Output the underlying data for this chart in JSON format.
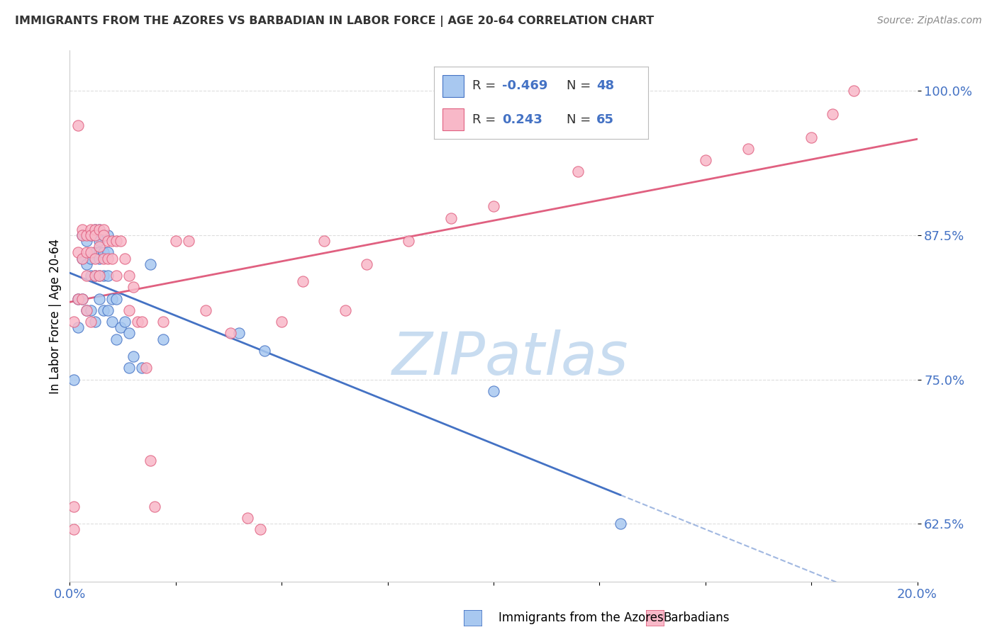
{
  "title": "IMMIGRANTS FROM THE AZORES VS BARBADIAN IN LABOR FORCE | AGE 20-64 CORRELATION CHART",
  "source": "Source: ZipAtlas.com",
  "ylabel": "In Labor Force | Age 20-64",
  "ytick_labels": [
    "62.5%",
    "75.0%",
    "87.5%",
    "100.0%"
  ],
  "ytick_values": [
    0.625,
    0.75,
    0.875,
    1.0
  ],
  "xlim": [
    0.0,
    0.2
  ],
  "ylim": [
    0.575,
    1.035
  ],
  "legend_r_azores": "-0.469",
  "legend_n_azores": "48",
  "legend_r_barbadian": "0.243",
  "legend_n_barbadian": "65",
  "color_azores_fill": "#A8C8F0",
  "color_barbadian_fill": "#F8B8C8",
  "color_azores_line": "#4472C4",
  "color_barbadian_line": "#E06080",
  "color_title": "#333333",
  "color_ytick": "#4472C4",
  "color_xtick": "#4472C4",
  "watermark_text": "ZIPatlas",
  "watermark_color": "#C8DCF0",
  "azores_x": [
    0.001,
    0.002,
    0.002,
    0.003,
    0.003,
    0.003,
    0.004,
    0.004,
    0.004,
    0.005,
    0.005,
    0.005,
    0.005,
    0.006,
    0.006,
    0.006,
    0.006,
    0.006,
    0.007,
    0.007,
    0.007,
    0.007,
    0.007,
    0.007,
    0.008,
    0.008,
    0.008,
    0.008,
    0.009,
    0.009,
    0.009,
    0.009,
    0.01,
    0.01,
    0.011,
    0.011,
    0.012,
    0.013,
    0.014,
    0.014,
    0.015,
    0.017,
    0.019,
    0.022,
    0.04,
    0.046,
    0.1,
    0.13
  ],
  "azores_y": [
    0.75,
    0.82,
    0.795,
    0.875,
    0.855,
    0.82,
    0.87,
    0.85,
    0.81,
    0.875,
    0.855,
    0.84,
    0.81,
    0.88,
    0.875,
    0.86,
    0.84,
    0.8,
    0.88,
    0.87,
    0.86,
    0.855,
    0.84,
    0.82,
    0.875,
    0.86,
    0.84,
    0.81,
    0.875,
    0.86,
    0.84,
    0.81,
    0.82,
    0.8,
    0.82,
    0.785,
    0.795,
    0.8,
    0.79,
    0.76,
    0.77,
    0.76,
    0.85,
    0.785,
    0.79,
    0.775,
    0.74,
    0.625
  ],
  "barbadian_x": [
    0.001,
    0.001,
    0.001,
    0.002,
    0.002,
    0.002,
    0.003,
    0.003,
    0.003,
    0.003,
    0.004,
    0.004,
    0.004,
    0.004,
    0.005,
    0.005,
    0.005,
    0.005,
    0.006,
    0.006,
    0.006,
    0.006,
    0.007,
    0.007,
    0.007,
    0.008,
    0.008,
    0.008,
    0.009,
    0.009,
    0.01,
    0.01,
    0.011,
    0.011,
    0.012,
    0.013,
    0.014,
    0.014,
    0.015,
    0.016,
    0.017,
    0.018,
    0.019,
    0.02,
    0.022,
    0.025,
    0.028,
    0.032,
    0.038,
    0.042,
    0.045,
    0.05,
    0.055,
    0.06,
    0.065,
    0.07,
    0.08,
    0.09,
    0.1,
    0.12,
    0.15,
    0.16,
    0.175,
    0.18,
    0.185
  ],
  "barbadian_y": [
    0.8,
    0.64,
    0.62,
    0.97,
    0.86,
    0.82,
    0.88,
    0.875,
    0.855,
    0.82,
    0.875,
    0.86,
    0.84,
    0.81,
    0.88,
    0.875,
    0.86,
    0.8,
    0.88,
    0.875,
    0.855,
    0.84,
    0.88,
    0.865,
    0.84,
    0.88,
    0.875,
    0.855,
    0.87,
    0.855,
    0.87,
    0.855,
    0.87,
    0.84,
    0.87,
    0.855,
    0.84,
    0.81,
    0.83,
    0.8,
    0.8,
    0.76,
    0.68,
    0.64,
    0.8,
    0.87,
    0.87,
    0.81,
    0.79,
    0.63,
    0.62,
    0.8,
    0.835,
    0.87,
    0.81,
    0.85,
    0.87,
    0.89,
    0.9,
    0.93,
    0.94,
    0.95,
    0.96,
    0.98,
    1.0
  ],
  "grid_color": "#DDDDDD",
  "spine_color": "#CCCCCC"
}
